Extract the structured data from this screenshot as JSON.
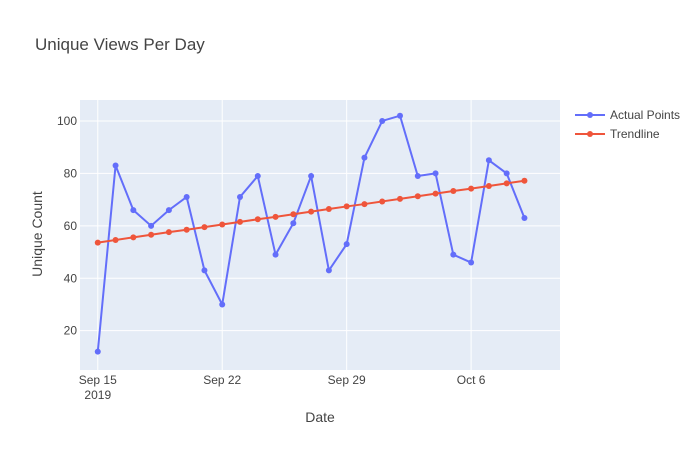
{
  "chart_data": {
    "type": "line",
    "title": "Unique Views Per Day",
    "xlabel": "Date",
    "ylabel": "Unique Count",
    "x": [
      "2019-09-15",
      "2019-09-16",
      "2019-09-17",
      "2019-09-18",
      "2019-09-19",
      "2019-09-20",
      "2019-09-21",
      "2019-09-22",
      "2019-09-23",
      "2019-09-24",
      "2019-09-25",
      "2019-09-26",
      "2019-09-27",
      "2019-09-28",
      "2019-09-29",
      "2019-09-30",
      "2019-10-01",
      "2019-10-02",
      "2019-10-03",
      "2019-10-04",
      "2019-10-05",
      "2019-10-06",
      "2019-10-07",
      "2019-10-08",
      "2019-10-09"
    ],
    "x_tick_labels": [
      {
        "date": "2019-09-15",
        "label": "Sep 15",
        "sublabel": "2019"
      },
      {
        "date": "2019-09-22",
        "label": "Sep 22",
        "sublabel": ""
      },
      {
        "date": "2019-09-29",
        "label": "Sep 29",
        "sublabel": ""
      },
      {
        "date": "2019-10-06",
        "label": "Oct 6",
        "sublabel": ""
      }
    ],
    "xlim": [
      "2019-09-14",
      "2019-10-11"
    ],
    "ylim": [
      5,
      108
    ],
    "y_ticks": [
      20,
      40,
      60,
      80,
      100
    ],
    "grid": true,
    "legend_position": "top-right",
    "series": [
      {
        "name": "Actual Points",
        "color": "#636efa",
        "mode": "lines+markers",
        "values": [
          12,
          83,
          66,
          60,
          66,
          71,
          43,
          30,
          71,
          79,
          49,
          61,
          79,
          43,
          53,
          86,
          100,
          102,
          79,
          80,
          49,
          46,
          85,
          80,
          63
        ]
      },
      {
        "name": "Trendline",
        "color": "#ef553b",
        "mode": "lines+markers",
        "values": [
          53.6,
          54.6,
          55.6,
          56.6,
          57.6,
          58.5,
          59.5,
          60.5,
          61.5,
          62.5,
          63.4,
          64.4,
          65.4,
          66.4,
          67.4,
          68.3,
          69.3,
          70.3,
          71.3,
          72.3,
          73.3,
          74.2,
          75.2,
          76.2,
          77.2
        ]
      }
    ]
  }
}
